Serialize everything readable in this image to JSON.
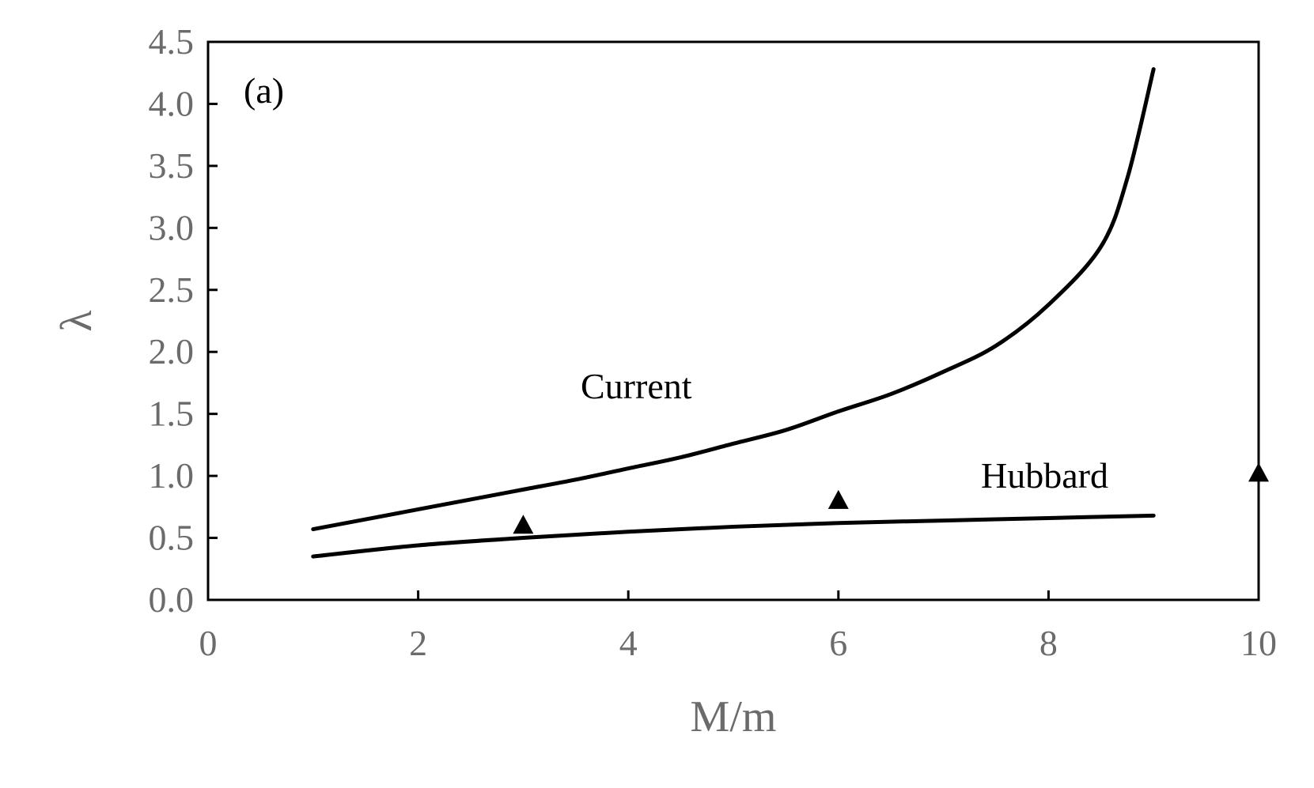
{
  "chart_data": {
    "type": "line",
    "title": "",
    "panel_label": "(a)",
    "xlabel": "M/m",
    "ylabel": "λ",
    "xlim": [
      0,
      10
    ],
    "ylim": [
      0,
      4.5
    ],
    "x_ticks": [
      "0",
      "2",
      "4",
      "6",
      "8",
      "10"
    ],
    "y_ticks": [
      "0.0",
      "0.5",
      "1.0",
      "1.5",
      "2.0",
      "2.5",
      "3.0",
      "3.5",
      "4.0",
      "4.5"
    ],
    "grid": false,
    "legend": "none",
    "line_color": "#000000",
    "axis_text_color": "#6b6b6b",
    "series": [
      {
        "name": "Current",
        "style": "line",
        "x": [
          1,
          1.5,
          2,
          2.5,
          3,
          3.5,
          4,
          4.5,
          5,
          5.5,
          6,
          6.5,
          7,
          7.5,
          8,
          8.5,
          8.75,
          9
        ],
        "y": [
          0.57,
          0.65,
          0.73,
          0.81,
          0.89,
          0.97,
          1.06,
          1.15,
          1.26,
          1.37,
          1.52,
          1.66,
          1.84,
          2.05,
          2.38,
          2.85,
          3.4,
          4.28
        ]
      },
      {
        "name": "Hubbard",
        "style": "line",
        "x": [
          1,
          2,
          3,
          4,
          5,
          6,
          7,
          8,
          9
        ],
        "y": [
          0.35,
          0.44,
          0.5,
          0.55,
          0.59,
          0.62,
          0.64,
          0.66,
          0.68
        ]
      },
      {
        "name": "",
        "style": "markers",
        "marker": "triangle",
        "x": [
          3,
          6,
          10
        ],
        "y": [
          0.61,
          0.81,
          1.03
        ]
      }
    ]
  }
}
